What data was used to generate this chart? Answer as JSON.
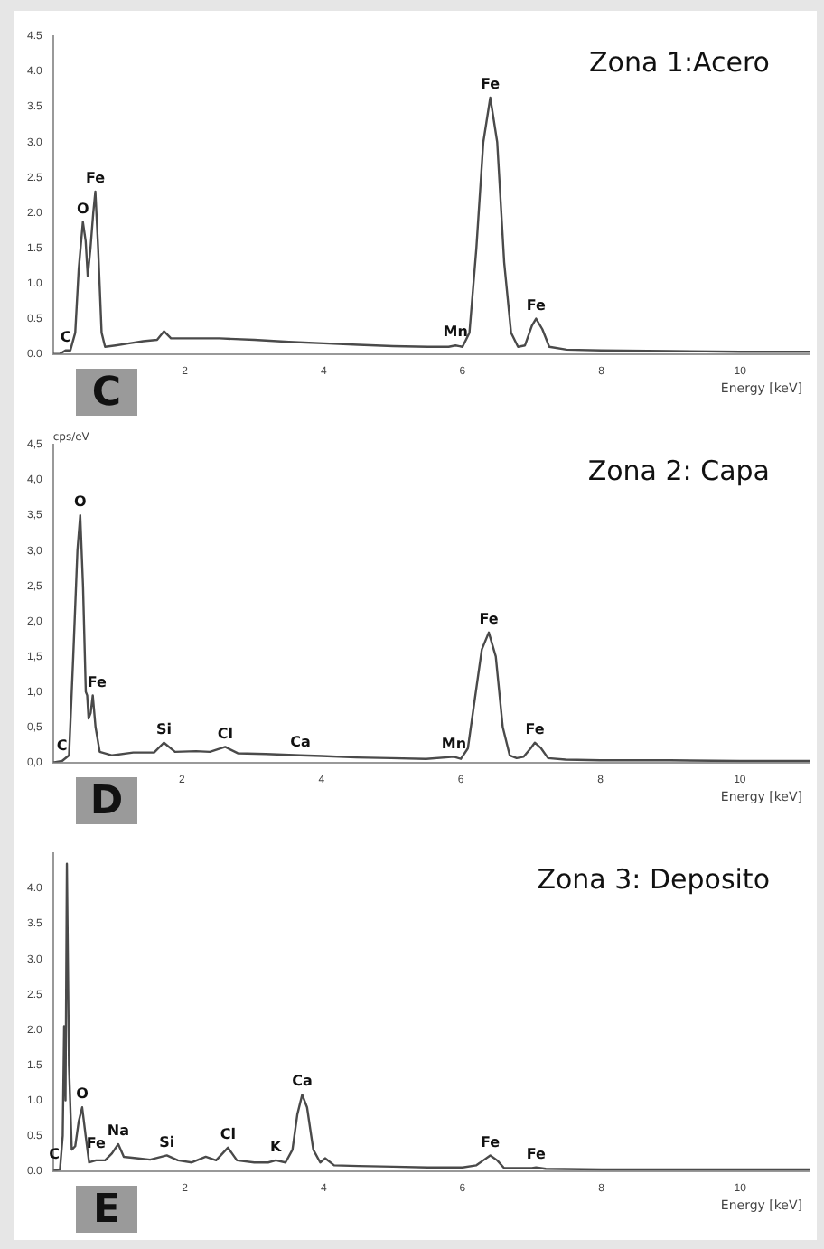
{
  "chart_data": [
    {
      "type": "line",
      "title": "Zona 1:Acero",
      "xlabel": "Energy [keV]",
      "annotations": [
        "C",
        {
          "text": "C",
          "x": 0.28,
          "y": 0.05
        },
        {
          "text": "O",
          "x": 0.53,
          "y": 1.87
        },
        {
          "text": "Fe",
          "x": 0.71,
          "y": 2.3
        },
        {
          "text": "Mn",
          "x": 5.9,
          "y": 0.12
        },
        {
          "text": "Fe",
          "x": 6.4,
          "y": 3.63
        },
        {
          "text": "Fe",
          "x": 7.06,
          "y": 0.5
        }
      ],
      "series": [
        {
          "color": "#4a4a4a",
          "x": [
            0.1,
            0.2,
            0.28,
            0.35,
            0.42,
            0.47,
            0.53,
            0.57,
            0.6,
            0.64,
            0.68,
            0.71,
            0.75,
            0.8,
            0.85,
            1.0,
            1.2,
            1.4,
            1.6,
            1.7,
            1.8,
            2.0,
            2.5,
            3.0,
            3.5,
            4.0,
            4.5,
            5.0,
            5.5,
            5.8,
            5.9,
            6.0,
            6.1,
            6.2,
            6.3,
            6.4,
            6.5,
            6.6,
            6.7,
            6.8,
            6.9,
            7.0,
            7.06,
            7.15,
            7.25,
            7.5,
            8,
            9,
            10,
            11
          ],
          "values": [
            0,
            0,
            0.05,
            0.05,
            0.3,
            1.2,
            1.87,
            1.6,
            1.1,
            1.5,
            2.0,
            2.3,
            1.5,
            0.3,
            0.1,
            0.12,
            0.15,
            0.18,
            0.2,
            0.32,
            0.22,
            0.22,
            0.22,
            0.2,
            0.17,
            0.15,
            0.13,
            0.11,
            0.1,
            0.1,
            0.12,
            0.1,
            0.3,
            1.5,
            3.0,
            3.63,
            3.0,
            1.3,
            0.3,
            0.1,
            0.12,
            0.4,
            0.5,
            0.35,
            0.1,
            0.06,
            0.05,
            0.04,
            0.03,
            0.03
          ]
        }
      ],
      "xlim": [
        0.1,
        11
      ],
      "xticks": [
        2,
        4,
        6,
        8,
        10
      ],
      "ylim": [
        0,
        4.5
      ],
      "yticks": [
        {
          "value": 0,
          "label": "0.0"
        },
        {
          "value": 0.5,
          "label": "0.5"
        },
        {
          "value": 1,
          "label": "1.0"
        },
        {
          "value": 1.5,
          "label": "1.5"
        },
        {
          "value": 2,
          "label": "2.0"
        },
        {
          "value": 2.5,
          "label": "2.5"
        },
        {
          "value": 3,
          "label": "3.0"
        },
        {
          "value": 3.5,
          "label": "3.5"
        },
        {
          "value": 4,
          "label": "4.0"
        },
        {
          "value": 4.5,
          "label": "4.5"
        }
      ],
      "grid": false,
      "legend": false,
      "marker": "none",
      "line_style": "solid"
    },
    {
      "type": "line",
      "title": "Zona 2: Capa",
      "xlabel": "Energy [keV]",
      "ylabel": "cps/eV",
      "annotations": [
        "D",
        {
          "text": "C",
          "x": 0.28,
          "y": 0.05
        },
        {
          "text": "O",
          "x": 0.54,
          "y": 3.5
        },
        {
          "text": "Fe",
          "x": 0.78,
          "y": 0.95
        },
        {
          "text": "Si",
          "x": 1.74,
          "y": 0.28
        },
        {
          "text": "Cl",
          "x": 2.62,
          "y": 0.22
        },
        {
          "text": "Ca",
          "x": 3.7,
          "y": 0.1
        },
        {
          "text": "Mn",
          "x": 5.9,
          "y": 0.08
        },
        {
          "text": "Fe",
          "x": 6.4,
          "y": 1.84
        },
        {
          "text": "Fe",
          "x": 7.06,
          "y": 0.28
        }
      ],
      "series": [
        {
          "color": "#4a4a4a",
          "x": [
            0.15,
            0.28,
            0.38,
            0.44,
            0.5,
            0.54,
            0.58,
            0.62,
            0.64,
            0.66,
            0.69,
            0.72,
            0.76,
            0.82,
            1.0,
            1.3,
            1.6,
            1.74,
            1.9,
            2.2,
            2.4,
            2.62,
            2.8,
            3.2,
            3.7,
            4.0,
            4.5,
            5.0,
            5.5,
            5.9,
            6.0,
            6.1,
            6.2,
            6.3,
            6.4,
            6.5,
            6.6,
            6.7,
            6.8,
            6.9,
            7.0,
            7.06,
            7.15,
            7.25,
            7.5,
            8,
            9,
            10,
            11
          ],
          "values": [
            0,
            0.02,
            0.1,
            1.5,
            3.0,
            3.5,
            2.5,
            1.0,
            0.95,
            0.62,
            0.7,
            0.95,
            0.5,
            0.15,
            0.1,
            0.14,
            0.14,
            0.28,
            0.15,
            0.16,
            0.15,
            0.22,
            0.13,
            0.12,
            0.1,
            0.09,
            0.07,
            0.06,
            0.05,
            0.08,
            0.05,
            0.2,
            0.9,
            1.6,
            1.84,
            1.5,
            0.5,
            0.1,
            0.06,
            0.08,
            0.2,
            0.28,
            0.2,
            0.06,
            0.04,
            0.03,
            0.03,
            0.02,
            0.02
          ]
        }
      ],
      "xlim": [
        0.15,
        11
      ],
      "xticks": [
        2,
        4,
        6,
        8,
        10
      ],
      "ylim": [
        0,
        4.5
      ],
      "yticks": [
        {
          "value": 0,
          "label": "0,0"
        },
        {
          "value": 0.5,
          "label": "0,5"
        },
        {
          "value": 1,
          "label": "1,0"
        },
        {
          "value": 1.5,
          "label": "1,5"
        },
        {
          "value": 2,
          "label": "2,0"
        },
        {
          "value": 2.5,
          "label": "2,5"
        },
        {
          "value": 3,
          "label": "3,0"
        },
        {
          "value": 3.5,
          "label": "3,5"
        },
        {
          "value": 4,
          "label": "4,0"
        },
        {
          "value": 4.5,
          "label": "4,5"
        }
      ],
      "grid": false,
      "legend": false,
      "marker": "none",
      "line_style": "solid"
    },
    {
      "type": "line",
      "title": "Zona 3: Deposito",
      "xlabel": "Energy [keV]",
      "annotations": [
        "E",
        {
          "text": "C",
          "x": 0.12,
          "y": 0.05
        },
        {
          "text": "O",
          "x": 0.52,
          "y": 0.9
        },
        {
          "text": "Fe",
          "x": 0.72,
          "y": 0.2
        },
        {
          "text": "Na",
          "x": 1.04,
          "y": 0.38
        },
        {
          "text": "Si",
          "x": 1.74,
          "y": 0.22
        },
        {
          "text": "Cl",
          "x": 2.62,
          "y": 0.33
        },
        {
          "text": "K",
          "x": 3.31,
          "y": 0.15
        },
        {
          "text": "Ca",
          "x": 3.69,
          "y": 1.08
        },
        {
          "text": "Fe",
          "x": 6.4,
          "y": 0.22
        },
        {
          "text": "Fe",
          "x": 7.06,
          "y": 0.05
        }
      ],
      "series": [
        {
          "color": "#4a4a4a",
          "x": [
            0.1,
            0.2,
            0.24,
            0.26,
            0.28,
            0.3,
            0.33,
            0.37,
            0.42,
            0.47,
            0.52,
            0.57,
            0.62,
            0.72,
            0.85,
            0.95,
            1.04,
            1.12,
            1.3,
            1.5,
            1.74,
            1.9,
            2.1,
            2.3,
            2.45,
            2.62,
            2.75,
            3.0,
            3.2,
            3.31,
            3.45,
            3.55,
            3.62,
            3.69,
            3.76,
            3.85,
            3.95,
            4.02,
            4.15,
            4.5,
            5.0,
            5.5,
            6.0,
            6.2,
            6.3,
            6.4,
            6.5,
            6.6,
            7.0,
            7.06,
            7.2,
            8,
            9,
            10,
            11
          ],
          "values": [
            0,
            0.02,
            0.5,
            2.05,
            1.0,
            4.35,
            1.5,
            0.3,
            0.35,
            0.7,
            0.9,
            0.5,
            0.12,
            0.15,
            0.15,
            0.25,
            0.38,
            0.2,
            0.18,
            0.16,
            0.22,
            0.15,
            0.12,
            0.2,
            0.15,
            0.33,
            0.15,
            0.12,
            0.12,
            0.15,
            0.12,
            0.3,
            0.8,
            1.08,
            0.9,
            0.3,
            0.12,
            0.18,
            0.08,
            0.07,
            0.06,
            0.05,
            0.05,
            0.08,
            0.15,
            0.22,
            0.15,
            0.04,
            0.04,
            0.05,
            0.03,
            0.02,
            0.02,
            0.02,
            0.02
          ]
        }
      ],
      "xlim": [
        0.1,
        11
      ],
      "xticks": [
        2,
        4,
        6,
        8,
        10
      ],
      "ylim": [
        0,
        4.5
      ],
      "yticks": [
        {
          "value": 0,
          "label": "0.0"
        },
        {
          "value": 0.5,
          "label": "0.5"
        },
        {
          "value": 1,
          "label": "1.0"
        },
        {
          "value": 1.5,
          "label": "1.5"
        },
        {
          "value": 2,
          "label": "2.0"
        },
        {
          "value": 2.5,
          "label": "2.5"
        },
        {
          "value": 3,
          "label": "3.0"
        },
        {
          "value": 3.5,
          "label": "3.5"
        },
        {
          "value": 4,
          "label": "4.0"
        }
      ],
      "grid": false,
      "legend": false,
      "marker": "none",
      "line_style": "solid"
    }
  ]
}
